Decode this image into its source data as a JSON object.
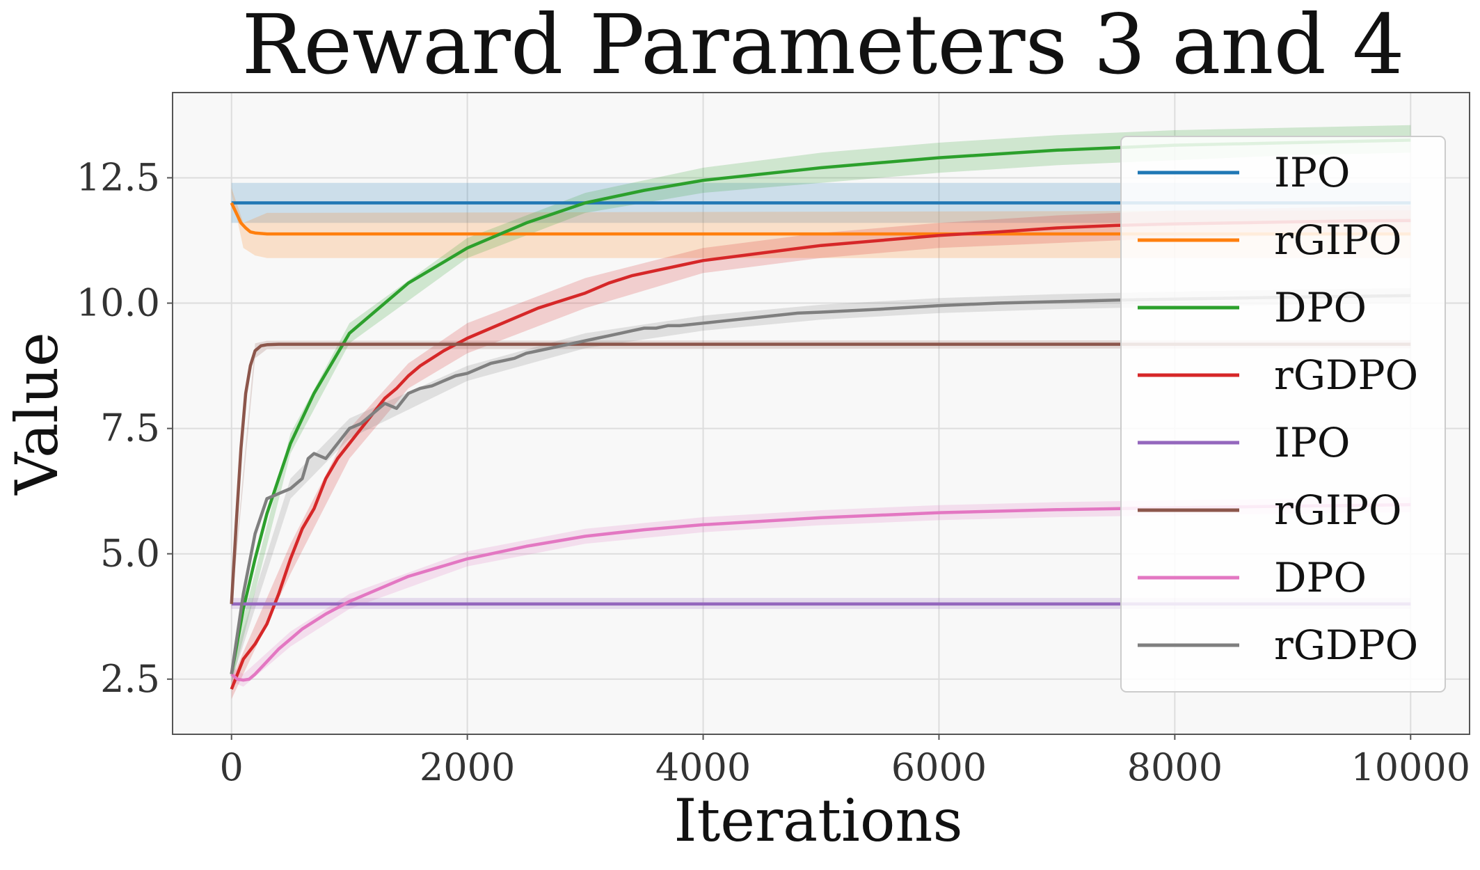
{
  "chart_data": {
    "type": "line",
    "title": "Reward Parameters 3 and 4",
    "xlabel": "Iterations",
    "ylabel": "Value",
    "xlim": [
      -500,
      10500
    ],
    "ylim": [
      1.4,
      14.2
    ],
    "xticks": [
      0,
      2000,
      4000,
      6000,
      8000,
      10000
    ],
    "xtick_labels": [
      "0",
      "2000",
      "4000",
      "6000",
      "8000",
      "10000"
    ],
    "yticks": [
      2.5,
      5.0,
      7.5,
      10.0,
      12.5
    ],
    "ytick_labels": [
      "2.5",
      "5.0",
      "7.5",
      "10.0",
      "12.5"
    ],
    "grid": true,
    "legend_position": "right",
    "series": [
      {
        "name": "IPO",
        "color": "#1f77b4",
        "x": [
          0,
          10000
        ],
        "y": [
          12.0,
          12.0
        ],
        "band": {
          "x": [
            0,
            10000
          ],
          "lower": [
            11.6,
            11.6
          ],
          "upper": [
            12.4,
            12.4
          ]
        }
      },
      {
        "name": "rGIPO",
        "color": "#ff7f0e",
        "x": [
          0,
          40,
          80,
          120,
          160,
          200,
          300,
          500,
          10000
        ],
        "y": [
          12.0,
          11.8,
          11.6,
          11.5,
          11.42,
          11.4,
          11.38,
          11.38,
          11.38
        ],
        "band": {
          "x": [
            0,
            100,
            200,
            300,
            10000
          ],
          "lower": [
            12.2,
            11.1,
            10.95,
            10.9,
            10.9
          ],
          "upper": [
            12.3,
            11.6,
            11.7,
            11.8,
            11.85
          ]
        }
      },
      {
        "name": "DPO",
        "color": "#2ca02c",
        "x": [
          0,
          100,
          200,
          300,
          400,
          500,
          700,
          1000,
          1500,
          2000,
          2500,
          3000,
          3500,
          4000,
          5000,
          6000,
          7000,
          8000,
          9000,
          10000
        ],
        "y": [
          2.6,
          3.9,
          4.9,
          5.8,
          6.5,
          7.2,
          8.2,
          9.4,
          10.4,
          11.1,
          11.6,
          12.0,
          12.25,
          12.45,
          12.7,
          12.9,
          13.05,
          13.15,
          13.2,
          13.25
        ],
        "band": {
          "x": [
            0,
            500,
            1000,
            2000,
            3000,
            4000,
            5000,
            6000,
            7000,
            8000,
            9000,
            10000
          ],
          "lower": [
            2.4,
            7.0,
            9.2,
            10.9,
            11.8,
            12.2,
            12.4,
            12.6,
            12.75,
            12.85,
            12.95,
            13.0
          ],
          "upper": [
            2.8,
            7.4,
            9.6,
            11.3,
            12.2,
            12.7,
            13.0,
            13.2,
            13.35,
            13.45,
            13.5,
            13.55
          ]
        }
      },
      {
        "name": "rGDPO",
        "color": "#d62728",
        "x": [
          0,
          100,
          200,
          300,
          400,
          500,
          600,
          700,
          800,
          900,
          1000,
          1100,
          1200,
          1300,
          1400,
          1500,
          1600,
          1700,
          1800,
          2000,
          2200,
          2400,
          2600,
          2800,
          3000,
          3200,
          3400,
          3600,
          3800,
          4000,
          4500,
          5000,
          5500,
          6000,
          6500,
          7000,
          7500,
          8000,
          8500,
          9000,
          9500,
          10000
        ],
        "y": [
          2.3,
          2.9,
          3.2,
          3.6,
          4.2,
          4.9,
          5.5,
          5.9,
          6.5,
          6.9,
          7.2,
          7.5,
          7.8,
          8.1,
          8.3,
          8.55,
          8.75,
          8.9,
          9.05,
          9.3,
          9.5,
          9.7,
          9.9,
          10.05,
          10.2,
          10.4,
          10.55,
          10.65,
          10.75,
          10.85,
          11.0,
          11.15,
          11.25,
          11.35,
          11.42,
          11.5,
          11.55,
          11.58,
          11.6,
          11.62,
          11.64,
          11.65
        ],
        "band": {
          "x": [
            0,
            500,
            1000,
            1500,
            2000,
            3000,
            4000,
            5000,
            6000,
            7000,
            8000,
            9000,
            10000
          ],
          "lower": [
            2.1,
            4.6,
            6.9,
            8.3,
            9.0,
            9.9,
            10.6,
            10.9,
            11.1,
            11.2,
            11.3,
            11.35,
            11.4
          ],
          "upper": [
            2.5,
            5.2,
            7.5,
            8.8,
            9.6,
            10.5,
            11.1,
            11.4,
            11.6,
            11.75,
            11.85,
            11.9,
            11.95
          ]
        }
      },
      {
        "name": "IPO",
        "color": "#9467bd",
        "x": [
          0,
          10000
        ],
        "y": [
          4.0,
          4.0
        ],
        "band": {
          "x": [
            0,
            10000
          ],
          "lower": [
            3.9,
            3.9
          ],
          "upper": [
            4.12,
            4.12
          ]
        }
      },
      {
        "name": "rGIPO",
        "color": "#8c564b",
        "x": [
          0,
          40,
          80,
          120,
          160,
          200,
          250,
          300,
          400,
          10000
        ],
        "y": [
          4.0,
          5.6,
          7.1,
          8.2,
          8.75,
          9.05,
          9.15,
          9.17,
          9.18,
          9.18
        ],
        "band": {
          "x": [
            0,
            200,
            300,
            10000
          ],
          "lower": [
            3.9,
            8.9,
            9.08,
            9.1
          ],
          "upper": [
            4.1,
            9.2,
            9.25,
            9.26
          ]
        }
      },
      {
        "name": "DPO",
        "color": "#e377c2",
        "x": [
          0,
          50,
          100,
          150,
          200,
          300,
          400,
          500,
          600,
          800,
          1000,
          1500,
          2000,
          2500,
          3000,
          3500,
          4000,
          5000,
          6000,
          7000,
          8000,
          9000,
          10000
        ],
        "y": [
          2.6,
          2.5,
          2.48,
          2.5,
          2.6,
          2.85,
          3.1,
          3.3,
          3.5,
          3.8,
          4.05,
          4.55,
          4.9,
          5.15,
          5.35,
          5.48,
          5.58,
          5.72,
          5.82,
          5.88,
          5.92,
          5.95,
          5.98
        ],
        "band": {
          "x": [
            0,
            100,
            500,
            1000,
            2000,
            3000,
            4000,
            5000,
            6000,
            7000,
            8000,
            9000,
            10000
          ],
          "lower": [
            2.45,
            2.35,
            3.15,
            3.9,
            4.75,
            5.2,
            5.43,
            5.57,
            5.67,
            5.73,
            5.77,
            5.8,
            5.83
          ],
          "upper": [
            2.75,
            2.6,
            3.45,
            4.2,
            5.05,
            5.5,
            5.73,
            5.87,
            5.97,
            6.03,
            6.07,
            6.1,
            6.13
          ]
        }
      },
      {
        "name": "rGDPO",
        "color": "#7f7f7f",
        "x": [
          0,
          100,
          200,
          300,
          400,
          500,
          600,
          650,
          700,
          800,
          900,
          1000,
          1100,
          1200,
          1300,
          1400,
          1500,
          1600,
          1700,
          1800,
          1900,
          2000,
          2100,
          2200,
          2300,
          2400,
          2500,
          2600,
          2700,
          2800,
          2900,
          3000,
          3100,
          3200,
          3300,
          3400,
          3500,
          3600,
          3700,
          3800,
          4000,
          4200,
          4400,
          4600,
          4800,
          5000,
          5500,
          6000,
          6500,
          7000,
          7500,
          8000,
          9000,
          10000
        ],
        "y": [
          2.6,
          4.2,
          5.4,
          6.1,
          6.2,
          6.3,
          6.5,
          6.9,
          7.0,
          6.9,
          7.2,
          7.5,
          7.6,
          7.8,
          8.0,
          7.9,
          8.2,
          8.3,
          8.35,
          8.45,
          8.55,
          8.6,
          8.7,
          8.8,
          8.85,
          8.9,
          9.0,
          9.05,
          9.1,
          9.15,
          9.2,
          9.25,
          9.3,
          9.35,
          9.4,
          9.45,
          9.5,
          9.5,
          9.55,
          9.55,
          9.6,
          9.65,
          9.7,
          9.75,
          9.8,
          9.82,
          9.88,
          9.95,
          10.0,
          10.03,
          10.06,
          10.08,
          10.12,
          10.15
        ],
        "band": {
          "x": [
            0,
            500,
            1000,
            2000,
            3000,
            4000,
            5000,
            6000,
            7000,
            8000,
            9000,
            10000
          ],
          "lower": [
            2.45,
            6.1,
            7.3,
            8.45,
            9.1,
            9.45,
            9.67,
            9.8,
            9.88,
            9.93,
            9.97,
            10.0
          ],
          "upper": [
            2.75,
            6.5,
            7.7,
            8.75,
            9.4,
            9.75,
            9.97,
            10.1,
            10.18,
            10.23,
            10.27,
            10.3
          ]
        }
      }
    ]
  }
}
